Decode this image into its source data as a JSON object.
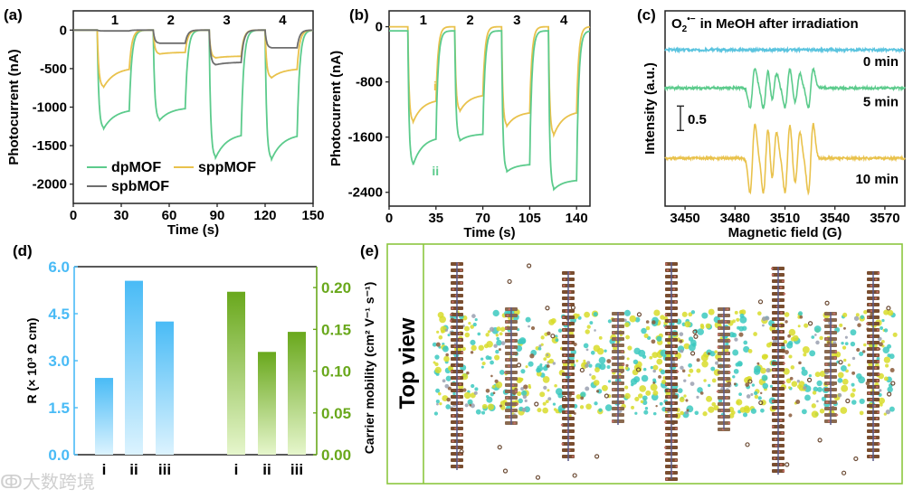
{
  "watermark": "大数跨境",
  "colors": {
    "dpMOF": "#5ccb8c",
    "sppMOF": "#e9c24c",
    "spbMOF": "#6e6e6e",
    "min0": "#5bc4df",
    "blue_bar": "#49bbf6",
    "green_bar": "#69a81c"
  },
  "chart_data": [
    {
      "panel": "(a)",
      "type": "line",
      "xlabel": "Time (s)",
      "ylabel": "Photocurrent (nA)",
      "xlim": [
        0,
        150
      ],
      "ylim": [
        -2250,
        250
      ],
      "xticks": [
        "0",
        "30",
        "60",
        "90",
        "120",
        "150"
      ],
      "yticks": [
        "0",
        "-500",
        "-1000",
        "-1500",
        "-2000"
      ],
      "cycle_labels": [
        "1",
        "2",
        "3",
        "4"
      ],
      "light_on": [
        [
          15,
          35
        ],
        [
          50,
          70
        ],
        [
          85,
          105
        ],
        [
          120,
          140
        ]
      ],
      "legend": [
        "dpMOF",
        "sppMOF",
        "spbMOF"
      ],
      "series": [
        {
          "name": "dpMOF",
          "baseline": 0,
          "peaks": [
            -1280,
            -1170,
            -1660,
            -1680
          ],
          "ends": [
            -1050,
            -1020,
            -1370,
            -1380
          ]
        },
        {
          "name": "sppMOF",
          "baseline": 0,
          "peaks": [
            -740,
            -310,
            -360,
            -620
          ],
          "ends": [
            -510,
            -290,
            -340,
            -510
          ]
        },
        {
          "name": "spbMOF",
          "baseline": 0,
          "peaks": [
            -10,
            -170,
            -450,
            -230
          ],
          "ends": [
            -10,
            -170,
            -420,
            -230
          ]
        }
      ]
    },
    {
      "panel": "(b)",
      "type": "line",
      "xlabel": "Time (s)",
      "ylabel": "Photocurrent (nA)",
      "xlim": [
        0,
        150
      ],
      "ylim": [
        -2600,
        230
      ],
      "xticks": [
        "0",
        "35",
        "70",
        "105",
        "140"
      ],
      "yticks": [
        "0",
        "-800",
        "-1600",
        "-2400"
      ],
      "cycle_labels": [
        "1",
        "2",
        "3",
        "4"
      ],
      "light_on": [
        [
          14,
          35
        ],
        [
          49,
          70
        ],
        [
          84,
          105
        ],
        [
          119,
          140
        ]
      ],
      "series": [
        {
          "name": "i",
          "baseline": 0,
          "peaks": [
            -1380,
            -1220,
            -1440,
            -1570
          ],
          "ends": [
            -1080,
            -1000,
            -1250,
            -1250
          ]
        },
        {
          "name": "ii",
          "baseline": -60,
          "peaks": [
            -2000,
            -1650,
            -2100,
            -2360
          ],
          "ends": [
            -1630,
            -1560,
            -2000,
            -2230
          ]
        }
      ]
    },
    {
      "panel": "(c)",
      "type": "line",
      "title": "in MeOH after irradiation",
      "title_species": "O",
      "title_sub": "2",
      "title_sup": "•−",
      "xlabel": "Magnetic field (G)",
      "ylabel": "Intensity (a.u.)",
      "xlim": [
        3438,
        3582
      ],
      "ylim": [
        0,
        4
      ],
      "xticks": [
        "3450",
        "3480",
        "3510",
        "3540",
        "3570"
      ],
      "scale_bar": {
        "label": "0.5",
        "value": 0.5
      },
      "line_positions": [
        3490.5,
        3498.5,
        3503.5,
        3511.5,
        3517.5,
        3525.5
      ],
      "series": [
        {
          "name": "0 min",
          "offset": 3.2,
          "amplitude": 0
        },
        {
          "name": "5 min",
          "offset": 2.42,
          "amplitude": 0.4
        },
        {
          "name": "10 min",
          "offset": 0.98,
          "amplitude": 0.7
        }
      ]
    },
    {
      "panel": "(d)",
      "type": "bar",
      "categories": [
        "i",
        "ii",
        "iii"
      ],
      "left": {
        "ylabel": "R (× 10³ Ω cm)",
        "ylim": [
          0,
          6
        ],
        "yticks": [
          "0.0",
          "1.5",
          "3.0",
          "4.5",
          "6.0"
        ],
        "values": [
          2.45,
          5.55,
          4.25
        ]
      },
      "right": {
        "ylabel": "Carrier mobility (cm² V⁻¹ s⁻¹)",
        "ylim": [
          0,
          0.225
        ],
        "yticks": [
          "0.00",
          "0.05",
          "0.10",
          "0.15",
          "0.20"
        ],
        "values": [
          0.195,
          0.123,
          0.147
        ]
      }
    }
  ],
  "panel_e": {
    "label": "(e)",
    "view_label": "Top view"
  }
}
